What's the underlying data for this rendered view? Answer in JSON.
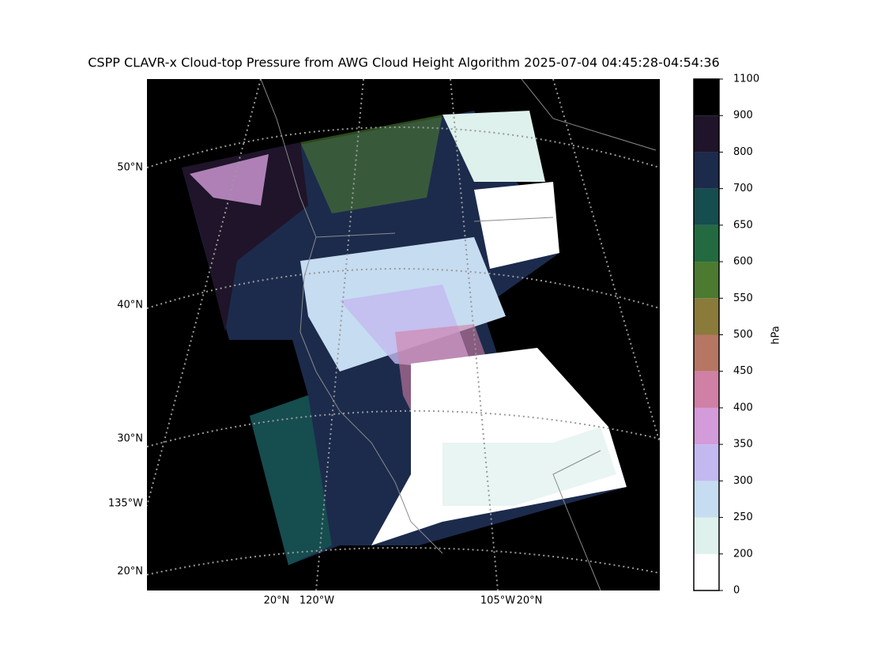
{
  "title": "CSPP CLAVR-x Cloud-top Pressure from AWG Cloud Height Algorithm 2025-07-04 04:45:28-04:54:36",
  "map": {
    "lat_labels": [
      "50°N",
      "40°N",
      "30°N",
      "135°W",
      "20°N"
    ],
    "lon_labels": [
      "20°N",
      "120°W",
      "105°W",
      "20°N"
    ]
  },
  "colorbar": {
    "label": "hPa",
    "ticks": [
      0,
      200,
      250,
      300,
      350,
      400,
      450,
      500,
      550,
      600,
      650,
      700,
      800,
      900,
      1100
    ],
    "colors": [
      "#ffffff",
      "#def1ec",
      "#c6dcf1",
      "#c3b9f0",
      "#d39bd9",
      "#d07fa5",
      "#b77664",
      "#8a7b3b",
      "#4b7a30",
      "#236a41",
      "#164d4f",
      "#1c2b4c",
      "#1f1429",
      "#000000"
    ]
  }
}
